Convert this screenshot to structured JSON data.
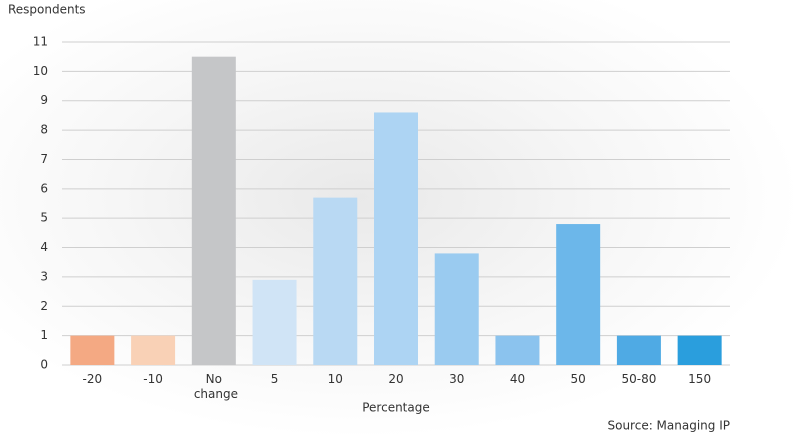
{
  "chart_data": {
    "type": "bar",
    "y_label": "Respondents",
    "x_label": "Percentage",
    "source": "Source: Managing IP",
    "categories": [
      "-20",
      "-10",
      "No change",
      "5",
      "10",
      "20",
      "30",
      "40",
      "50",
      "50-80",
      "150"
    ],
    "values": [
      1,
      1,
      10.5,
      2.9,
      5.7,
      8.6,
      3.8,
      1,
      4.8,
      1,
      1
    ],
    "colors": [
      "#f4a983",
      "#f9d1b6",
      "#c5c6c8",
      "#d0e4f6",
      "#b9d9f3",
      "#add4f3",
      "#9acbf0",
      "#8bc3ee",
      "#6cb7ea",
      "#4faae4",
      "#2a9edd"
    ],
    "ylim": [
      0,
      11
    ],
    "yticks": [
      0,
      1,
      2,
      3,
      4,
      5,
      6,
      7,
      8,
      9,
      10,
      11
    ],
    "grid": true
  }
}
